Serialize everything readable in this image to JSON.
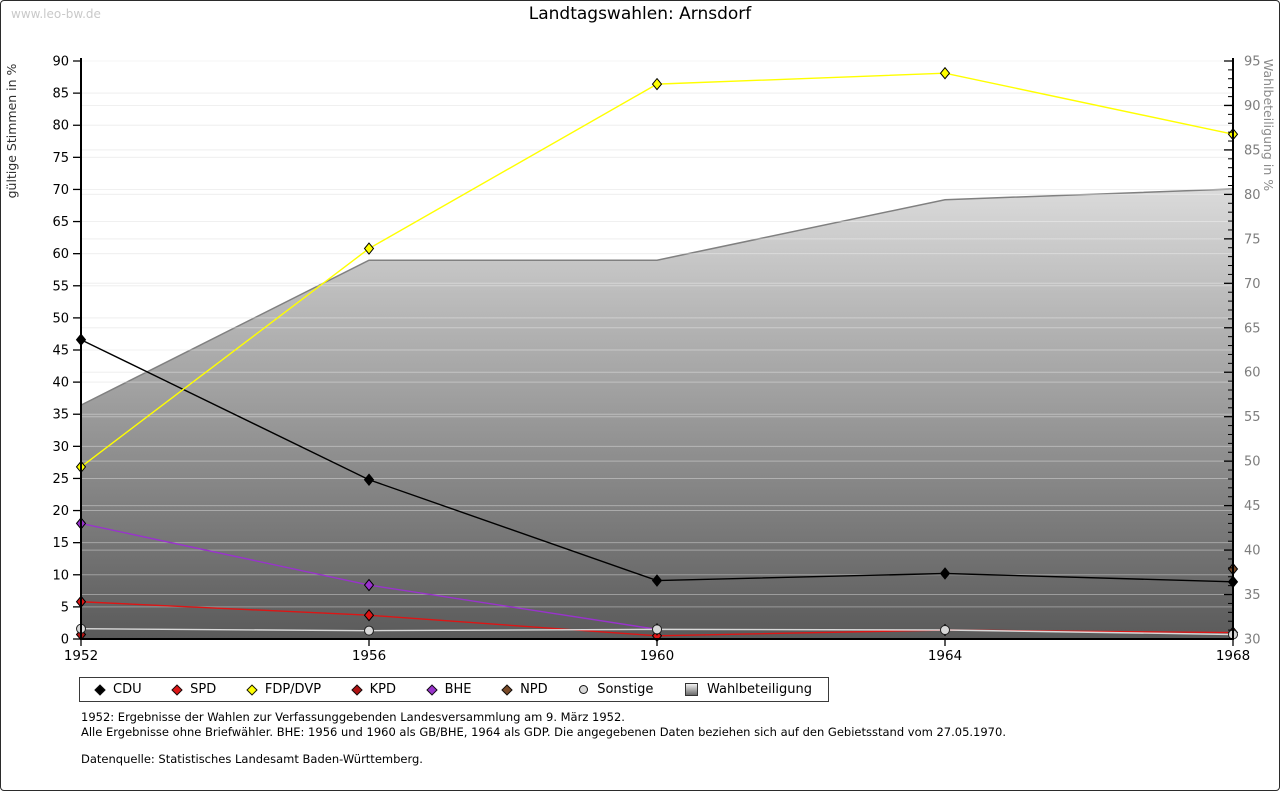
{
  "page": {
    "watermark": "www.leo-bw.de",
    "title": "Landtagswahlen: Arnsdorf"
  },
  "footnotes": {
    "line1": "1952: Ergebnisse der Wahlen zur Verfassunggebenden Landesversammlung am 9. März 1952.",
    "line2": "Alle Ergebnisse ohne Briefwähler. BHE: 1956 und 1960 als GB/BHE, 1964 als GDP. Die angegebenen Daten beziehen sich auf den Gebietsstand vom 27.05.1970.",
    "source": "Datenquelle: Statistisches Landesamt Baden-Württemberg."
  },
  "chart_data": {
    "type": "line",
    "title": "Landtagswahlen: Arnsdorf",
    "x": [
      1952,
      1956,
      1960,
      1964,
      1968
    ],
    "x_tick_labels": [
      "1952",
      "1956",
      "1960",
      "1964",
      "1968"
    ],
    "left_axis": {
      "label": "gültige Stimmen in %",
      "min": 0,
      "max": 90,
      "tick_step": 5
    },
    "right_axis": {
      "label": "Wahlbeteiligung in %",
      "min": 30,
      "max": 95,
      "tick_step": 5,
      "minor_tick_step": 1
    },
    "grid": true,
    "legend_position": "bottom",
    "series": [
      {
        "name": "CDU",
        "axis": "left",
        "style": "line",
        "marker": "diamond",
        "color": "#000000",
        "values": [
          46.6,
          24.8,
          9.1,
          10.2,
          8.9
        ]
      },
      {
        "name": "SPD",
        "axis": "left",
        "style": "line",
        "marker": "diamond",
        "color": "#dd1515",
        "values": [
          5.8,
          3.7,
          0.5,
          1.4,
          1.0
        ]
      },
      {
        "name": "FDP/DVP",
        "axis": "left",
        "style": "line",
        "marker": "diamond",
        "color": "#ffff00",
        "values": [
          26.8,
          60.8,
          86.4,
          88.1,
          78.6
        ]
      },
      {
        "name": "KPD",
        "axis": "left",
        "style": "line",
        "marker": "diamond",
        "color": "#b01212",
        "values": [
          0.7,
          null,
          null,
          null,
          null
        ]
      },
      {
        "name": "BHE",
        "axis": "left",
        "style": "line",
        "marker": "diamond",
        "color": "#9933cc",
        "values": [
          18.0,
          8.4,
          1.5,
          null,
          null
        ]
      },
      {
        "name": "NPD",
        "axis": "left",
        "style": "line",
        "marker": "diamond",
        "color": "#7a4a28",
        "values": [
          null,
          null,
          null,
          null,
          10.9
        ]
      },
      {
        "name": "Sonstige",
        "axis": "left",
        "style": "line",
        "marker": "circle",
        "color": "#d8d8d8",
        "values": [
          1.6,
          1.3,
          1.5,
          1.4,
          0.7
        ]
      },
      {
        "name": "Wahlbeteiligung",
        "axis": "right",
        "style": "area",
        "marker": "square",
        "color": "#808080",
        "fill_top": "#ffffff",
        "fill_bottom": "#5a5a5a",
        "values": [
          56.3,
          72.6,
          72.6,
          79.4,
          80.6
        ]
      }
    ]
  }
}
